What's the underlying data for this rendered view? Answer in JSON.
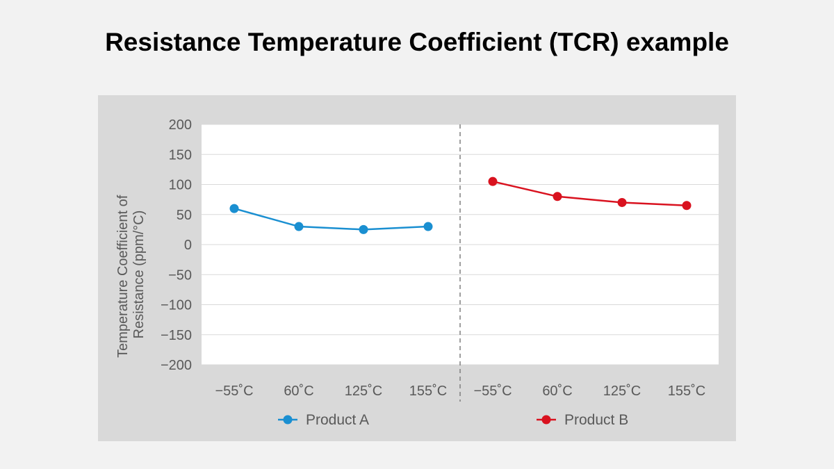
{
  "title": "Resistance Temperature Coefficient (TCR) example",
  "chart_data": {
    "type": "line",
    "title": "Resistance Temperature Coefficient (TCR) example",
    "ylabel": "Temperature Coefficient of Resistance (ppm/°C)",
    "ylabel_lines": [
      "Temperature Coefficient of",
      "Resistance (ppm/°C)"
    ],
    "xlabel": "",
    "ylim": [
      -200,
      200
    ],
    "yticks": [
      200,
      150,
      100,
      50,
      0,
      -50,
      -100,
      -150,
      -200
    ],
    "ytick_labels": [
      "200",
      "150",
      "100",
      "50",
      "0",
      "−50",
      "−100",
      "−150",
      "−200"
    ],
    "grid": true,
    "legend_position": "bottom",
    "series": [
      {
        "name": "Product A",
        "color": "#1a8fd1",
        "categories": [
          "−55˚C",
          "60˚C",
          "125˚C",
          "155˚C"
        ],
        "values": [
          60,
          30,
          25,
          30
        ]
      },
      {
        "name": "Product B",
        "color": "#d9121f",
        "categories": [
          "−55˚C",
          "60˚C",
          "125˚C",
          "155˚C"
        ],
        "values": [
          105,
          80,
          70,
          65
        ]
      }
    ]
  },
  "colors": {
    "page_background": "#f2f2f2",
    "panel_background": "#d9d9d9",
    "plot_background": "#ffffff",
    "gridline": "#d9d9d9",
    "divider": "#7f7f7f",
    "axis_text": "#595959"
  }
}
